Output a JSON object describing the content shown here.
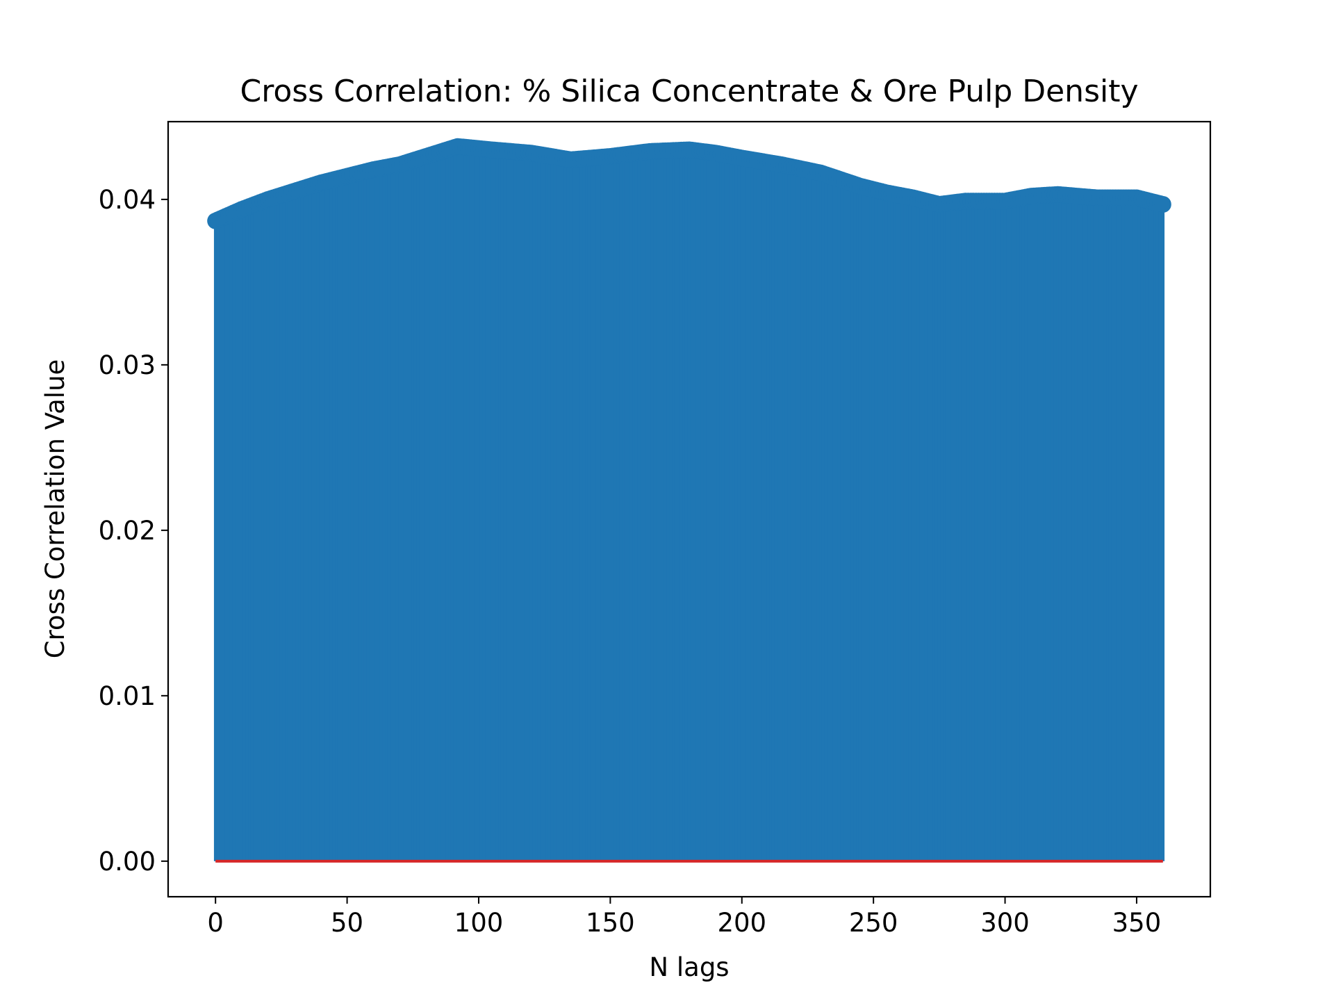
{
  "chart_data": {
    "type": "stem",
    "title": "Cross Correlation: % Silica Concentrate & Ore Pulp Density",
    "xlabel": "N lags",
    "ylabel": "Cross Correlation Value",
    "xlim": [
      -18,
      378
    ],
    "ylim": [
      -0.00215,
      0.0447
    ],
    "xticks": [
      0,
      50,
      100,
      150,
      200,
      250,
      300,
      350
    ],
    "xtick_labels": [
      "0",
      "50",
      "100",
      "150",
      "200",
      "250",
      "300",
      "350"
    ],
    "yticks": [
      0.0,
      0.01,
      0.02,
      0.03,
      0.04
    ],
    "ytick_labels": [
      "0.00",
      "0.01",
      "0.02",
      "0.03",
      "0.04"
    ],
    "grid": false,
    "baseline_value": 0,
    "colors": {
      "stem": "#1f77b4",
      "marker": "#1f77b4",
      "baseline": "#d62728"
    },
    "series": [
      {
        "lag_start": 0,
        "lag_step": 1,
        "keypoints": [
          [
            0,
            0.0387
          ],
          [
            10,
            0.0394
          ],
          [
            20,
            0.04
          ],
          [
            30,
            0.0405
          ],
          [
            40,
            0.041
          ],
          [
            50,
            0.0414
          ],
          [
            60,
            0.0418
          ],
          [
            70,
            0.0421
          ],
          [
            80,
            0.0426
          ],
          [
            92,
            0.0432
          ],
          [
            105,
            0.043
          ],
          [
            120,
            0.0428
          ],
          [
            135,
            0.0424
          ],
          [
            150,
            0.0426
          ],
          [
            165,
            0.0429
          ],
          [
            180,
            0.043
          ],
          [
            190,
            0.0428
          ],
          [
            200,
            0.0425
          ],
          [
            215,
            0.0421
          ],
          [
            230,
            0.0416
          ],
          [
            245,
            0.0408
          ],
          [
            255,
            0.0404
          ],
          [
            265,
            0.0401
          ],
          [
            275,
            0.0397
          ],
          [
            285,
            0.0399
          ],
          [
            300,
            0.0399
          ],
          [
            310,
            0.0402
          ],
          [
            320,
            0.0403
          ],
          [
            335,
            0.0401
          ],
          [
            350,
            0.0401
          ],
          [
            360,
            0.0397
          ]
        ]
      }
    ]
  }
}
